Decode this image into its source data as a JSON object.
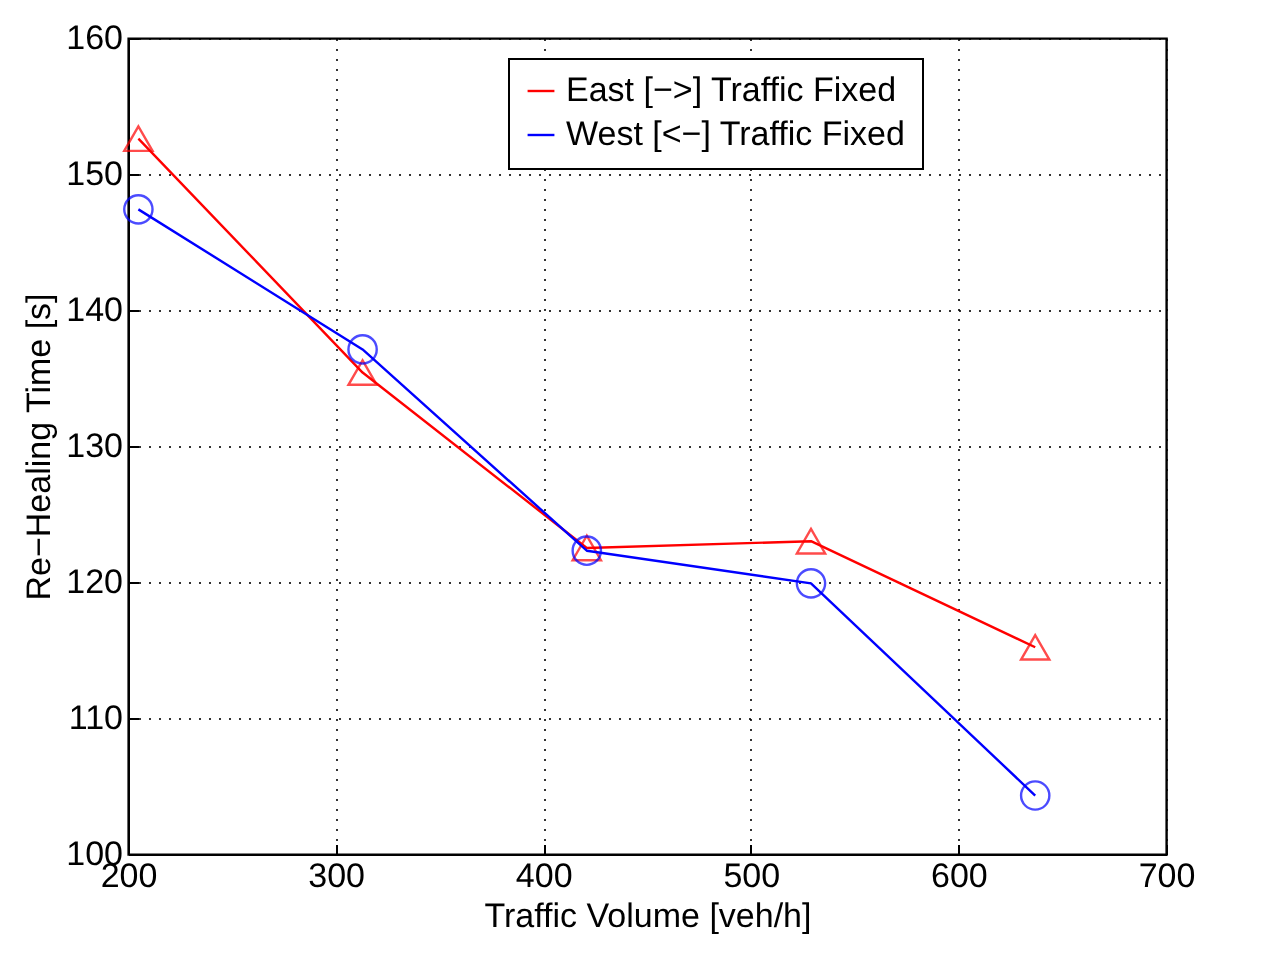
{
  "chart_data": {
    "type": "line",
    "xlabel": "Traffic Volume [veh/h]",
    "ylabel": "Re−Healing Time [s]",
    "x": [
      205,
      313,
      421,
      529,
      637
    ],
    "series": [
      {
        "name": "East [−>] Traffic Fixed",
        "color": "#ff0000",
        "marker": "triangle",
        "values": [
          152.6,
          135.4,
          122.5,
          123.0,
          115.2
        ]
      },
      {
        "name": "West [<−] Traffic Fixed",
        "color": "#0000ff",
        "marker": "circle",
        "values": [
          147.4,
          137.1,
          122.3,
          119.9,
          104.3
        ]
      }
    ],
    "xlim": [
      200,
      700
    ],
    "xticks": [
      200,
      300,
      400,
      500,
      600,
      700
    ],
    "ylim": [
      100,
      160
    ],
    "yticks": [
      100,
      110,
      120,
      130,
      140,
      150,
      160
    ],
    "grid": true,
    "legend": "top"
  }
}
